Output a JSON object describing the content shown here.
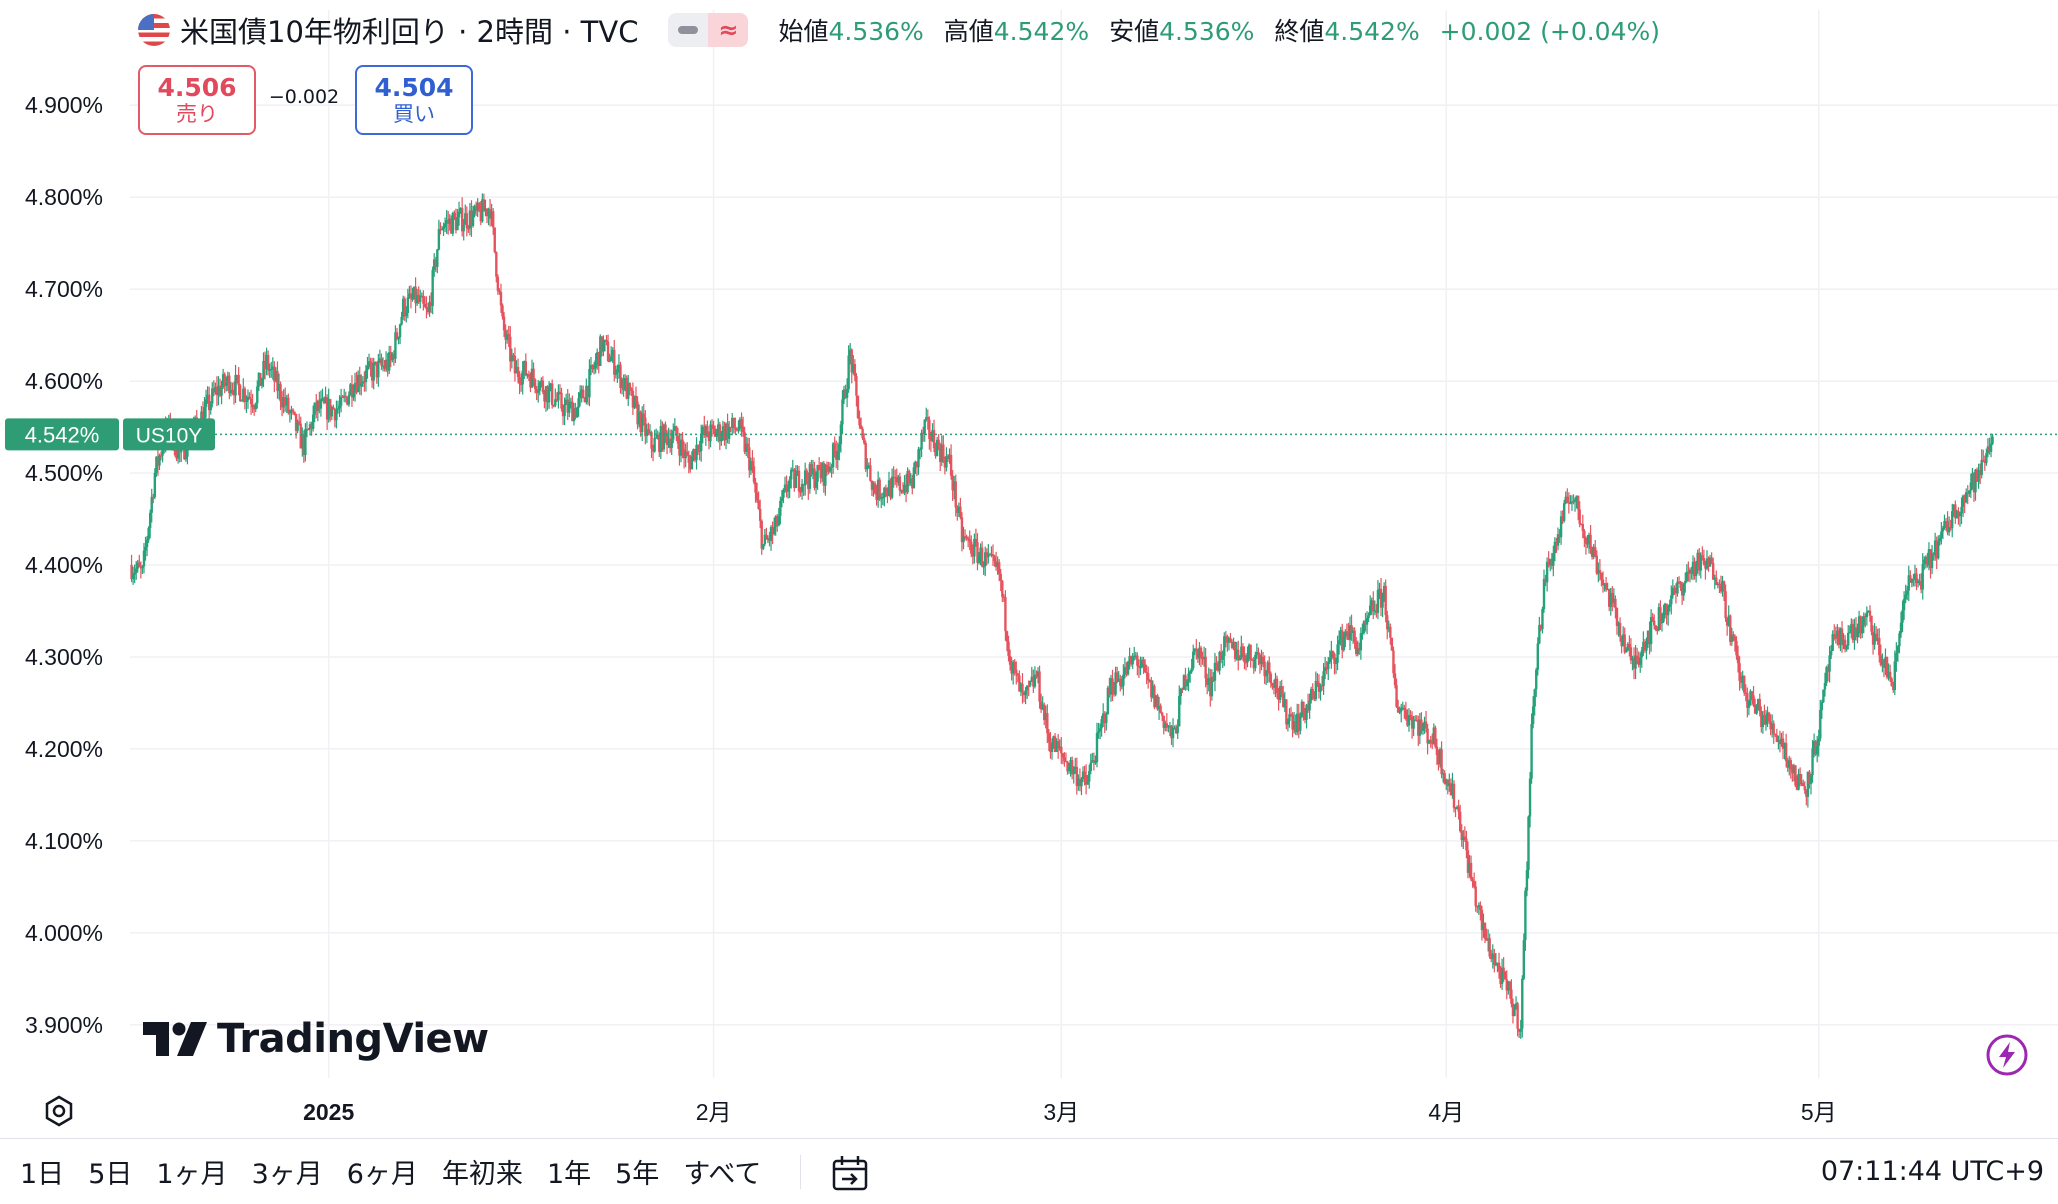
{
  "symbol": {
    "title": "米国債10年物利回り · 2時間 · TVC",
    "flag_icon": "us-flag-icon"
  },
  "ohlc": {
    "open_label": "始値",
    "open": "4.536%",
    "high_label": "高値",
    "high": "4.542%",
    "low_label": "安値",
    "low": "4.536%",
    "close_label": "終値",
    "close": "4.542%",
    "change": "+0.002 (+0.04%)"
  },
  "trade": {
    "sell_price": "4.506",
    "sell_label": "売り",
    "spread": "−0.002",
    "buy_price": "4.504",
    "buy_label": "買い"
  },
  "price_tag": {
    "value": "4.542%",
    "symbol": "US10Y"
  },
  "watermark": "TradingView",
  "ranges": [
    "1日",
    "5日",
    "1ヶ月",
    "3ヶ月",
    "6ヶ月",
    "年初来",
    "1年",
    "5年",
    "すべて"
  ],
  "clock": "07:11:44 UTC+9",
  "colors": {
    "up": "#26a17a",
    "down": "#e5545e",
    "grid": "#f0f1f4",
    "tag_bg": "#2e9c74",
    "accent": "#9c27b0"
  },
  "chart_data": {
    "type": "line",
    "title": "",
    "xlabel": "",
    "ylabel": "",
    "y_tick_labels": [
      "4.900%",
      "4.800%",
      "4.700%",
      "4.600%",
      "4.500%",
      "4.400%",
      "4.300%",
      "4.200%",
      "4.100%",
      "4.000%",
      "3.900%"
    ],
    "x_tick_labels": [
      {
        "label": "2025",
        "date": "2025-01-01"
      },
      {
        "label": "2月",
        "date": "2025-02-01"
      },
      {
        "label": "3月",
        "date": "2025-03-01"
      },
      {
        "label": "4月",
        "date": "2025-04-01"
      },
      {
        "label": "5月",
        "date": "2025-05-01"
      }
    ],
    "ylim": [
      3.84,
      4.96
    ],
    "xlim": [
      "2024-12-16",
      "2025-05-16"
    ],
    "grid": true,
    "current_value": 4.542,
    "series": [
      {
        "values": [
          [
            "2024-12-16",
            4.4
          ],
          [
            "2024-12-17",
            4.39
          ],
          [
            "2024-12-18",
            4.5
          ],
          [
            "2024-12-19",
            4.55
          ],
          [
            "2024-12-20",
            4.52
          ],
          [
            "2024-12-23",
            4.59
          ],
          [
            "2024-12-24",
            4.6
          ],
          [
            "2024-12-26",
            4.58
          ],
          [
            "2024-12-27",
            4.62
          ],
          [
            "2024-12-30",
            4.53
          ],
          [
            "2024-12-31",
            4.57
          ],
          [
            "2025-01-02",
            4.57
          ],
          [
            "2025-01-03",
            4.6
          ],
          [
            "2025-01-06",
            4.62
          ],
          [
            "2025-01-07",
            4.68
          ],
          [
            "2025-01-08",
            4.69
          ],
          [
            "2025-01-09",
            4.67
          ],
          [
            "2025-01-10",
            4.77
          ],
          [
            "2025-01-13",
            4.78
          ],
          [
            "2025-01-14",
            4.79
          ],
          [
            "2025-01-15",
            4.66
          ],
          [
            "2025-01-16",
            4.61
          ],
          [
            "2025-01-17",
            4.61
          ],
          [
            "2025-01-20",
            4.57
          ],
          [
            "2025-01-21",
            4.57
          ],
          [
            "2025-01-22",
            4.6
          ],
          [
            "2025-01-23",
            4.64
          ],
          [
            "2025-01-24",
            4.62
          ],
          [
            "2025-01-27",
            4.53
          ],
          [
            "2025-01-28",
            4.54
          ],
          [
            "2025-01-29",
            4.54
          ],
          [
            "2025-01-30",
            4.51
          ],
          [
            "2025-01-31",
            4.54
          ],
          [
            "2025-02-03",
            4.55
          ],
          [
            "2025-02-04",
            4.51
          ],
          [
            "2025-02-05",
            4.42
          ],
          [
            "2025-02-06",
            4.44
          ],
          [
            "2025-02-07",
            4.49
          ],
          [
            "2025-02-10",
            4.5
          ],
          [
            "2025-02-11",
            4.53
          ],
          [
            "2025-02-12",
            4.63
          ],
          [
            "2025-02-13",
            4.53
          ],
          [
            "2025-02-14",
            4.48
          ],
          [
            "2025-02-17",
            4.49
          ],
          [
            "2025-02-18",
            4.55
          ],
          [
            "2025-02-19",
            4.53
          ],
          [
            "2025-02-20",
            4.51
          ],
          [
            "2025-02-21",
            4.43
          ],
          [
            "2025-02-24",
            4.39
          ],
          [
            "2025-02-25",
            4.29
          ],
          [
            "2025-02-26",
            4.25
          ],
          [
            "2025-02-27",
            4.28
          ],
          [
            "2025-02-28",
            4.21
          ],
          [
            "2025-03-03",
            4.16
          ],
          [
            "2025-03-04",
            4.21
          ],
          [
            "2025-03-05",
            4.27
          ],
          [
            "2025-03-06",
            4.28
          ],
          [
            "2025-03-07",
            4.3
          ],
          [
            "2025-03-10",
            4.21
          ],
          [
            "2025-03-11",
            4.28
          ],
          [
            "2025-03-12",
            4.31
          ],
          [
            "2025-03-13",
            4.27
          ],
          [
            "2025-03-14",
            4.31
          ],
          [
            "2025-03-17",
            4.3
          ],
          [
            "2025-03-18",
            4.28
          ],
          [
            "2025-03-19",
            4.24
          ],
          [
            "2025-03-20",
            4.23
          ],
          [
            "2025-03-21",
            4.25
          ],
          [
            "2025-03-24",
            4.33
          ],
          [
            "2025-03-25",
            4.31
          ],
          [
            "2025-03-26",
            4.35
          ],
          [
            "2025-03-27",
            4.37
          ],
          [
            "2025-03-28",
            4.25
          ],
          [
            "2025-03-31",
            4.21
          ],
          [
            "2025-04-01",
            4.17
          ],
          [
            "2025-04-02",
            4.13
          ],
          [
            "2025-04-03",
            4.06
          ],
          [
            "2025-04-04",
            4.0
          ],
          [
            "2025-04-07",
            3.9
          ],
          [
            "2025-04-08",
            4.26
          ],
          [
            "2025-04-09",
            4.39
          ],
          [
            "2025-04-10",
            4.43
          ],
          [
            "2025-04-11",
            4.48
          ],
          [
            "2025-04-14",
            4.37
          ],
          [
            "2025-04-15",
            4.33
          ],
          [
            "2025-04-16",
            4.29
          ],
          [
            "2025-04-17",
            4.32
          ],
          [
            "2025-04-21",
            4.4
          ],
          [
            "2025-04-22",
            4.4
          ],
          [
            "2025-04-23",
            4.39
          ],
          [
            "2025-04-24",
            4.32
          ],
          [
            "2025-04-25",
            4.26
          ],
          [
            "2025-04-28",
            4.21
          ],
          [
            "2025-04-29",
            4.17
          ],
          [
            "2025-04-30",
            4.16
          ],
          [
            "2025-05-01",
            4.22
          ],
          [
            "2025-05-02",
            4.31
          ],
          [
            "2025-05-05",
            4.34
          ],
          [
            "2025-05-06",
            4.3
          ],
          [
            "2025-05-07",
            4.27
          ],
          [
            "2025-05-08",
            4.38
          ],
          [
            "2025-05-09",
            4.38
          ],
          [
            "2025-05-12",
            4.46
          ],
          [
            "2025-05-13",
            4.48
          ],
          [
            "2025-05-14",
            4.5
          ],
          [
            "2025-05-15",
            4.542
          ]
        ]
      }
    ]
  }
}
